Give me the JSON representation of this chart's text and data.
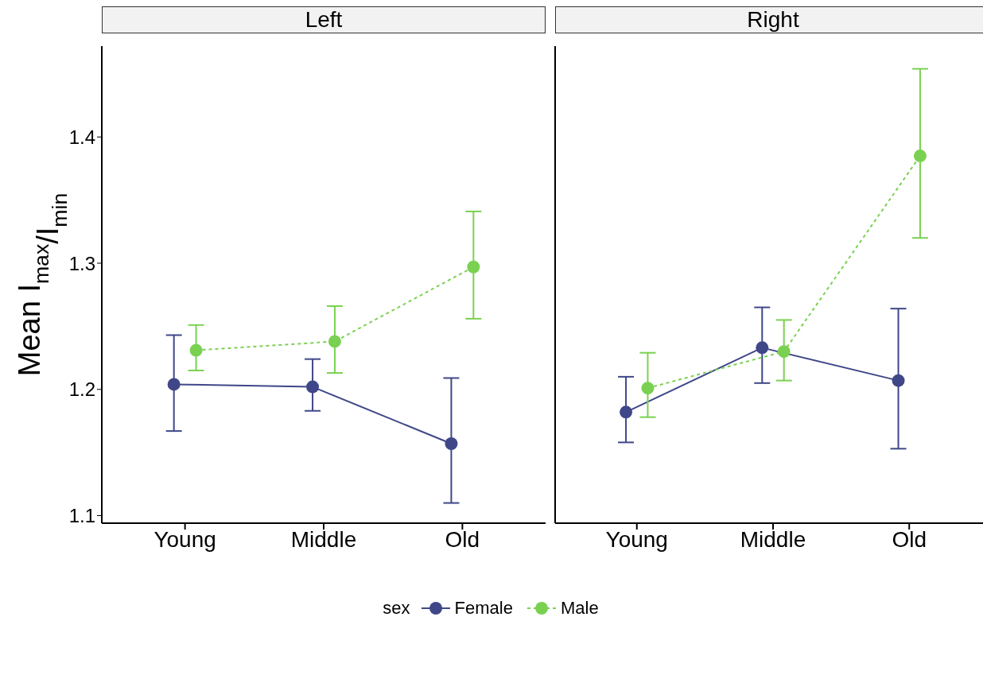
{
  "chart_data": [
    {
      "type": "line",
      "title": "Left",
      "ylabel": "Mean I$_{max}$/I$_{min}$",
      "legend_title": "sex",
      "legend": "bottom",
      "categories": [
        "Young",
        "Middle",
        "Old"
      ],
      "ylim": [
        1.094,
        1.472
      ],
      "yticks": [
        1.1,
        1.2,
        1.3,
        1.4
      ],
      "grid": false,
      "marker": "circle",
      "series": [
        {
          "name": "Female",
          "color": "#3f4788",
          "line_style": "solid",
          "values": [
            1.204,
            1.202,
            1.157
          ],
          "errors": [
            [
              1.167,
              1.243
            ],
            [
              1.183,
              1.224
            ],
            [
              1.11,
              1.209
            ]
          ]
        },
        {
          "name": "Male",
          "color": "#7ad151",
          "line_style": "dashed",
          "values": [
            1.231,
            1.238,
            1.297
          ],
          "errors": [
            [
              1.215,
              1.251
            ],
            [
              1.213,
              1.266
            ],
            [
              1.256,
              1.341
            ]
          ]
        }
      ]
    },
    {
      "type": "line",
      "title": "Right",
      "categories": [
        "Young",
        "Middle",
        "Old"
      ],
      "ylim": [
        1.094,
        1.472
      ],
      "yticks": [
        1.1,
        1.2,
        1.3,
        1.4
      ],
      "grid": false,
      "marker": "circle",
      "tick_labels": "x",
      "series": [
        {
          "color": "#3f4788",
          "line_style": "solid",
          "values": [
            1.182,
            1.233,
            1.207
          ],
          "errors": [
            [
              1.158,
              1.21
            ],
            [
              1.205,
              1.265
            ],
            [
              1.153,
              1.264
            ]
          ]
        },
        {
          "color": "#7ad151",
          "line_style": "dashed",
          "values": [
            1.201,
            1.23,
            1.385
          ],
          "errors": [
            [
              1.178,
              1.229
            ],
            [
              1.207,
              1.255
            ],
            [
              1.32,
              1.454
            ]
          ]
        }
      ]
    }
  ]
}
